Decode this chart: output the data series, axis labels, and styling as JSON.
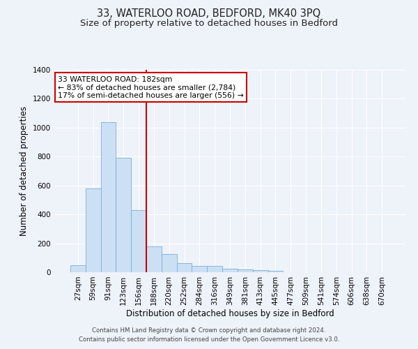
{
  "title": "33, WATERLOO ROAD, BEDFORD, MK40 3PQ",
  "subtitle": "Size of property relative to detached houses in Bedford",
  "xlabel": "Distribution of detached houses by size in Bedford",
  "ylabel": "Number of detached properties",
  "bar_labels": [
    "27sqm",
    "59sqm",
    "91sqm",
    "123sqm",
    "156sqm",
    "188sqm",
    "220sqm",
    "252sqm",
    "284sqm",
    "316sqm",
    "349sqm",
    "381sqm",
    "413sqm",
    "445sqm",
    "477sqm",
    "509sqm",
    "541sqm",
    "574sqm",
    "606sqm",
    "638sqm",
    "670sqm"
  ],
  "bar_values": [
    50,
    580,
    1040,
    790,
    430,
    180,
    125,
    65,
    45,
    45,
    25,
    20,
    15,
    8,
    0,
    0,
    0,
    0,
    0,
    0,
    0
  ],
  "bar_color": "#cce0f5",
  "bar_edge_color": "#7aafd4",
  "vline_color": "#cc0000",
  "annotation_text": "33 WATERLOO ROAD: 182sqm\n← 83% of detached houses are smaller (2,784)\n17% of semi-detached houses are larger (556) →",
  "annotation_box_color": "#ffffff",
  "annotation_box_edge": "#cc0000",
  "ylim": [
    0,
    1400
  ],
  "yticks": [
    0,
    200,
    400,
    600,
    800,
    1000,
    1200,
    1400
  ],
  "footer_line1": "Contains HM Land Registry data © Crown copyright and database right 2024.",
  "footer_line2": "Contains public sector information licensed under the Open Government Licence v3.0.",
  "bg_color": "#eef2f9",
  "plot_bg_color": "#eef2f9",
  "grid_color": "#ffffff",
  "title_fontsize": 10.5,
  "subtitle_fontsize": 9.5,
  "axis_label_fontsize": 8.5,
  "tick_fontsize": 7.5,
  "annotation_fontsize": 7.8,
  "footer_fontsize": 6.2
}
